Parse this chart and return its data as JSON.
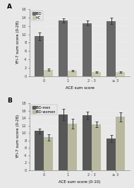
{
  "panel_A": {
    "title": "A",
    "categories": [
      "0",
      "1",
      "2 - 3",
      "≥ 3"
    ],
    "series": [
      {
        "label": "IBD",
        "color": "#686868",
        "values": [
          9.5,
          13.3,
          12.7,
          13.2
        ],
        "errors": [
          1.0,
          0.5,
          0.6,
          0.7
        ]
      },
      {
        "label": "HC",
        "color": "#c8c8b0",
        "values": [
          1.5,
          1.3,
          1.0,
          0.9
        ],
        "errors": [
          0.25,
          0.2,
          0.18,
          0.18
        ]
      }
    ],
    "ylabel": "YFI-7 sum score (0-28)",
    "xlabel": "ACE sum score",
    "ylim": [
      0,
      16
    ],
    "yticks": [
      0,
      2,
      4,
      6,
      8,
      10,
      12,
      14,
      16
    ]
  },
  "panel_B": {
    "title": "B",
    "categories": [
      "0",
      "1",
      "2 - 3",
      "≥ 3"
    ],
    "series": [
      {
        "label": "IBD-men",
        "color": "#575757",
        "values": [
          10.5,
          15.0,
          14.7,
          8.5
        ],
        "errors": [
          0.7,
          1.5,
          1.0,
          0.9
        ]
      },
      {
        "label": "IBD-women",
        "color": "#b8b8a0",
        "values": [
          8.8,
          12.5,
          12.3,
          14.3
        ],
        "errors": [
          0.8,
          1.3,
          0.8,
          1.3
        ]
      }
    ],
    "ylabel": "YFI-7 sum score (0-28)",
    "xlabel": "ACE sum score (0-10)",
    "ylim": [
      0,
      18
    ],
    "yticks": [
      0,
      2,
      4,
      6,
      8,
      10,
      12,
      14,
      16,
      18
    ]
  },
  "bar_width": 0.38,
  "background_color": "#e8e8e8",
  "plot_bg_color": "#e8e8e8",
  "label_fontsize": 4.0,
  "tick_fontsize": 3.8,
  "title_fontsize": 6.5,
  "legend_fontsize": 3.5
}
